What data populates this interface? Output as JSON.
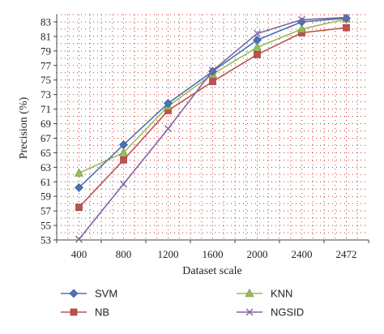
{
  "chart_data": {
    "type": "line",
    "xlabel": "Dataset scale",
    "ylabel": "Precision (%)",
    "categories": [
      "400",
      "800",
      "1200",
      "1600",
      "2000",
      "2400",
      "2472"
    ],
    "ylim": [
      53,
      84
    ],
    "yticks": [
      53,
      55,
      57,
      59,
      61,
      63,
      65,
      67,
      69,
      71,
      73,
      75,
      77,
      79,
      81,
      83
    ],
    "grid": true,
    "legend_position": "bottom",
    "series": [
      {
        "name": "SVM",
        "color": "#4a72b8",
        "marker": "diamond",
        "values": [
          60.2,
          66.1,
          71.8,
          76.2,
          80.5,
          83.0,
          83.5
        ]
      },
      {
        "name": "KNN",
        "color": "#9bbb59",
        "marker": "triangle",
        "values": [
          62.2,
          65.0,
          71.4,
          75.8,
          79.5,
          82.0,
          83.4
        ]
      },
      {
        "name": "NB",
        "color": "#c0504d",
        "marker": "square",
        "values": [
          57.5,
          64.0,
          70.8,
          74.8,
          78.5,
          81.5,
          82.2
        ]
      },
      {
        "name": "NGSID",
        "color": "#8064a2",
        "marker": "x",
        "values": [
          53.1,
          60.7,
          68.3,
          76.3,
          81.4,
          83.3,
          83.6
        ]
      }
    ]
  }
}
